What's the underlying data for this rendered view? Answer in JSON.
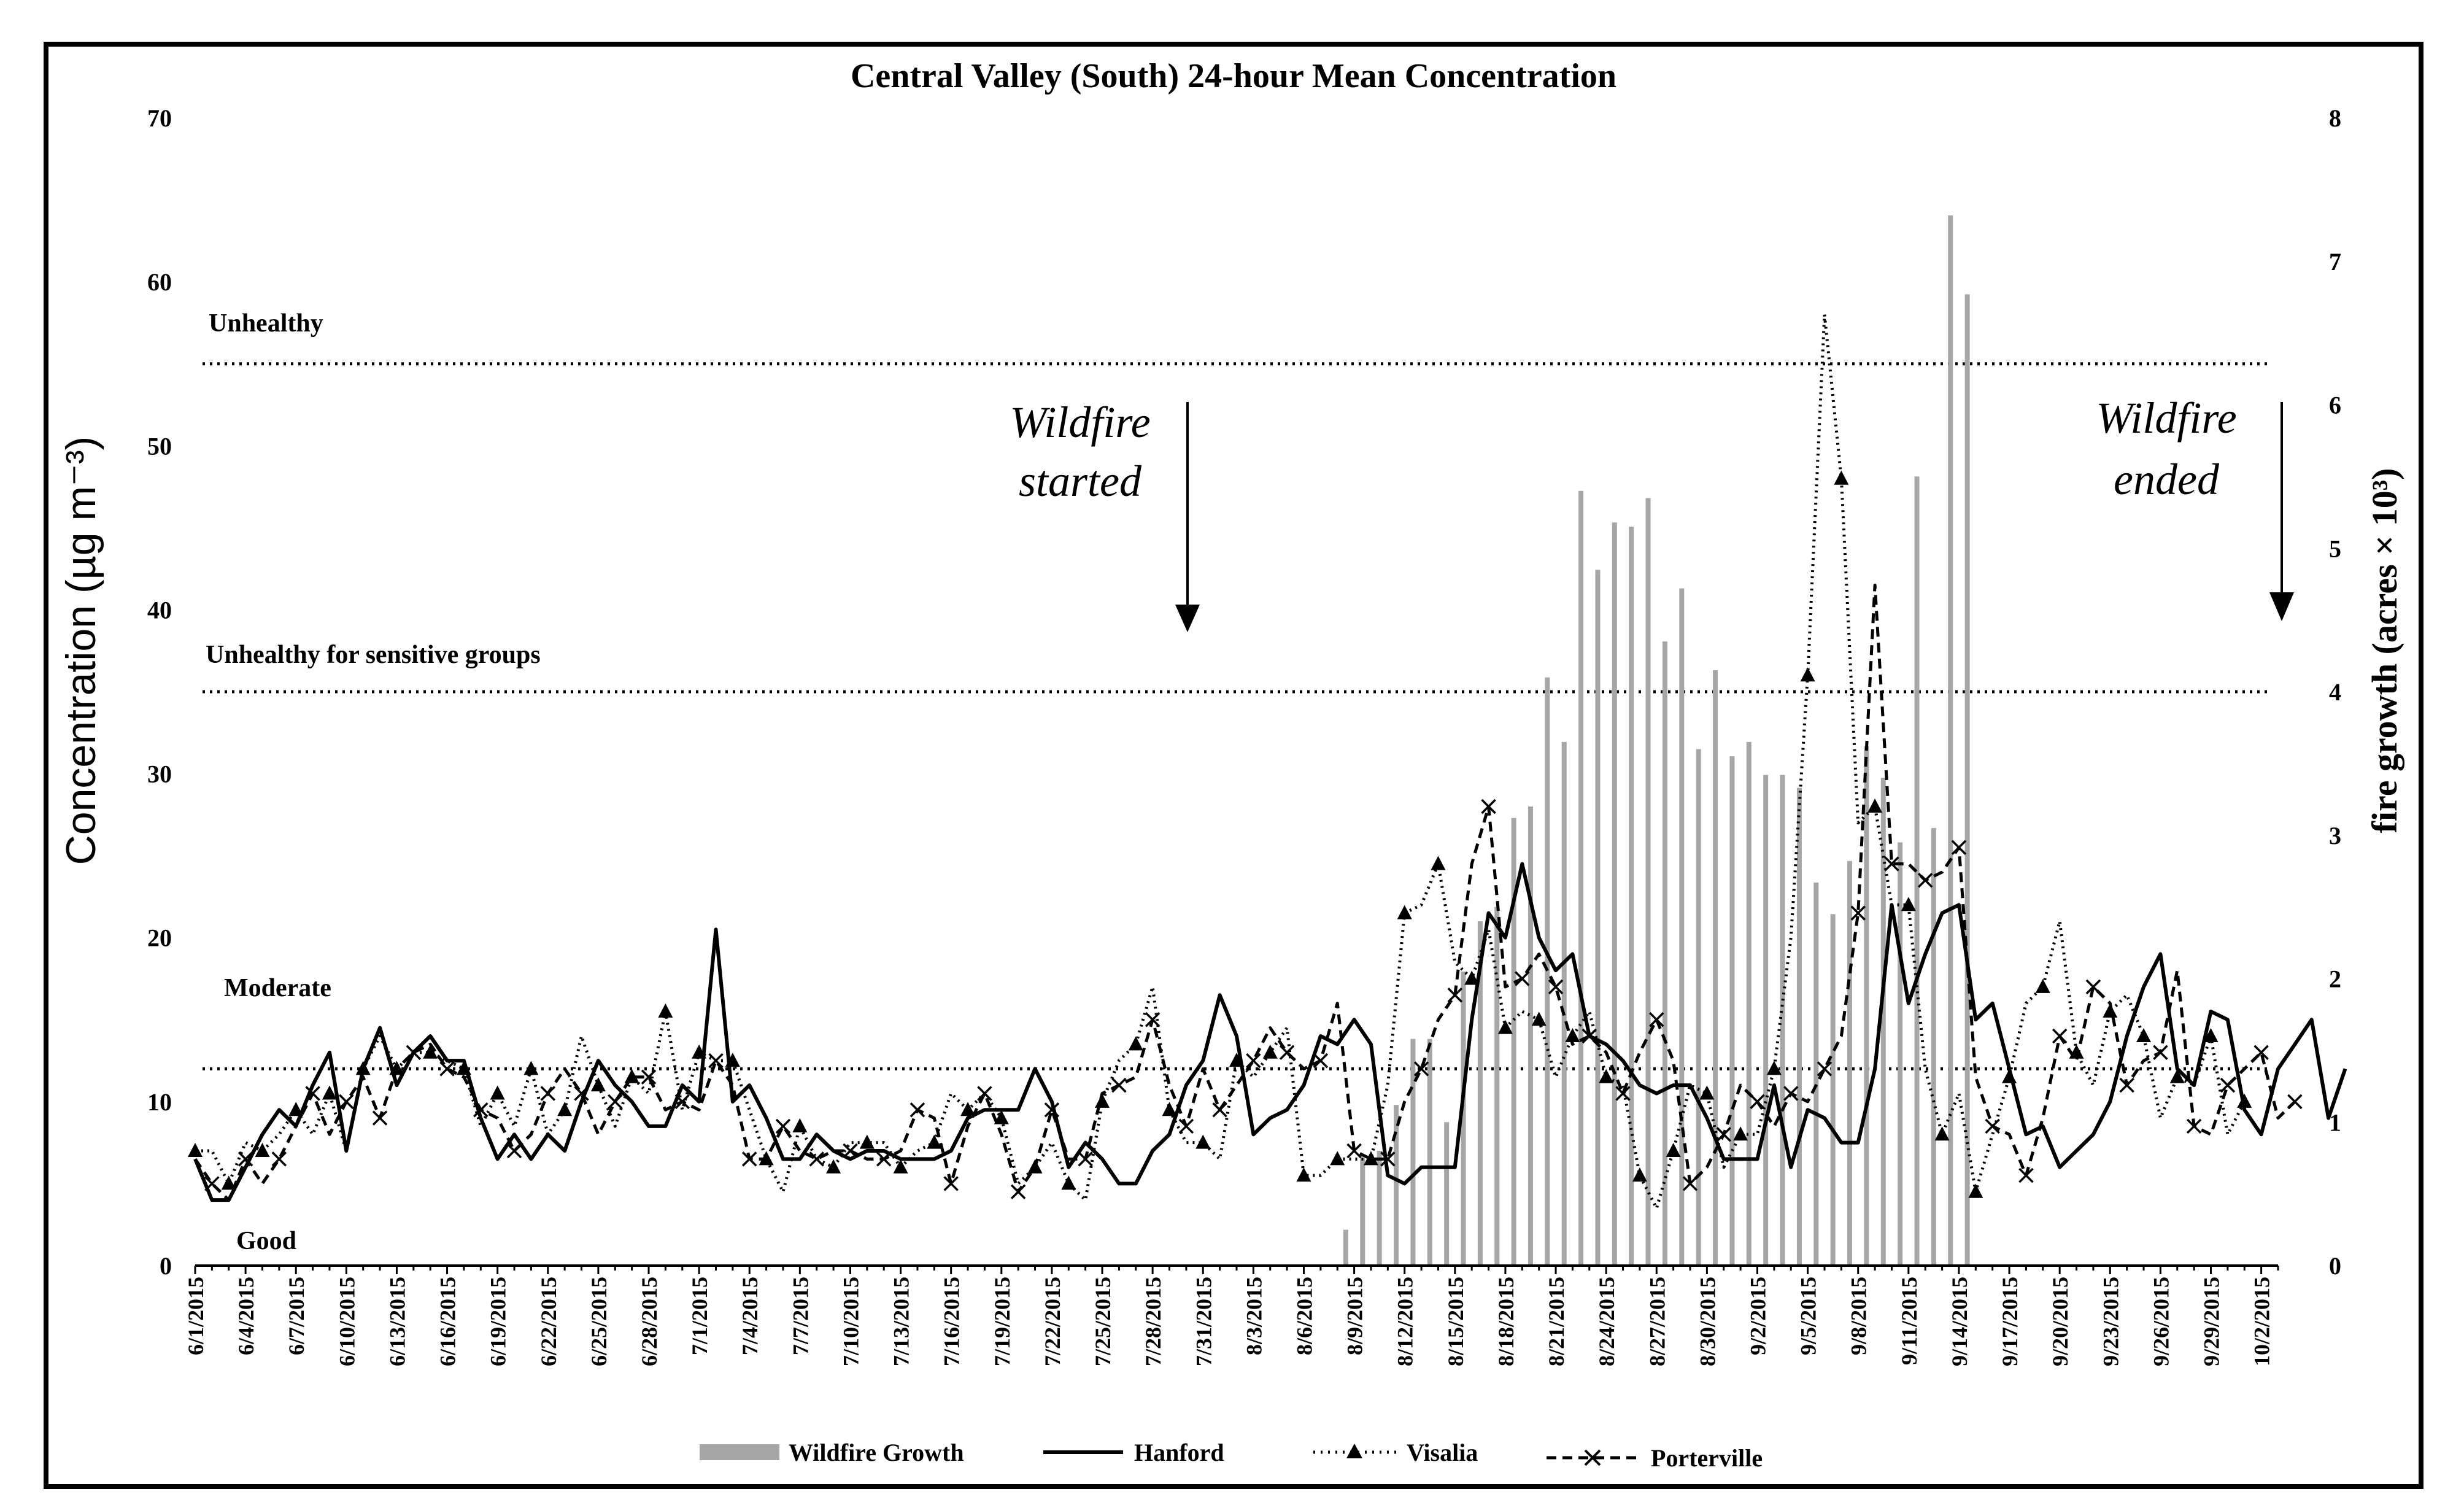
{
  "chart_data": {
    "type": "bar+line",
    "title": "Central Valley (South) 24-hour Mean Concentration",
    "ylabel_left": "Concentration (µg m⁻³)",
    "ylabel_right": "fire growth (acres × 10³)",
    "ylim_left": [
      0,
      70
    ],
    "ylim_right": [
      0,
      8
    ],
    "yticks_left": [
      0,
      10,
      20,
      30,
      40,
      50,
      60,
      70
    ],
    "yticks_right": [
      0,
      1,
      2,
      3,
      4,
      5,
      6,
      7,
      8
    ],
    "xticks": [
      "6/1/2015",
      "6/4/2015",
      "6/7/2015",
      "6/10/2015",
      "6/13/2015",
      "6/16/2015",
      "6/19/2015",
      "6/22/2015",
      "6/25/2015",
      "6/28/2015",
      "7/1/2015",
      "7/4/2015",
      "7/7/2015",
      "7/10/2015",
      "7/13/2015",
      "7/16/2015",
      "7/19/2015",
      "7/22/2015",
      "7/25/2015",
      "7/28/2015",
      "7/31/2015",
      "8/3/2015",
      "8/6/2015",
      "8/9/2015",
      "8/12/2015",
      "8/15/2015",
      "8/18/2015",
      "8/21/2015",
      "8/24/2015",
      "8/27/2015",
      "8/30/2015",
      "9/2/2015",
      "9/5/2015",
      "9/8/2015",
      "9/11/2015",
      "9/14/2015",
      "9/17/2015",
      "9/20/2015",
      "9/23/2015",
      "9/26/2015",
      "9/29/2015",
      "10/2/2015"
    ],
    "start_date": "6/1/2015",
    "reference_lines": [
      {
        "value": 55,
        "label": "Unhealthy"
      },
      {
        "value": 35,
        "label": "Unhealthy for sensitive groups"
      },
      {
        "value": 12,
        "label": ""
      }
    ],
    "band_labels": [
      {
        "value": 17,
        "label": "Moderate"
      },
      {
        "value": 1.5,
        "label": "Good"
      }
    ],
    "annotations": [
      {
        "label_line1": "Wildfire",
        "label_line2": "started",
        "day": 68
      },
      {
        "label_line1": "Wildfire",
        "label_line2": "ended",
        "day": 123
      }
    ],
    "legend": {
      "wildfire": "Wildfire Growth",
      "hanford": "Hanford",
      "visalia": "Visalia",
      "porterville": "Porterville"
    },
    "wildfire_growth": [
      [
        68,
        0.25
      ],
      [
        69,
        0.75
      ],
      [
        70,
        0.8
      ],
      [
        71,
        1.12
      ],
      [
        72,
        1.58
      ],
      [
        73,
        1.58
      ],
      [
        74,
        1.0
      ],
      [
        75,
        2.05
      ],
      [
        76,
        2.4
      ],
      [
        77,
        2.5
      ],
      [
        78,
        3.12
      ],
      [
        79,
        3.2
      ],
      [
        80,
        4.1
      ],
      [
        81,
        3.65
      ],
      [
        82,
        5.4
      ],
      [
        83,
        4.85
      ],
      [
        84,
        5.18
      ],
      [
        85,
        5.15
      ],
      [
        86,
        5.35
      ],
      [
        87,
        4.35
      ],
      [
        88,
        4.72
      ],
      [
        89,
        3.6
      ],
      [
        90,
        4.15
      ],
      [
        91,
        3.55
      ],
      [
        92,
        3.65
      ],
      [
        93,
        3.42
      ],
      [
        94,
        3.42
      ],
      [
        95,
        3.33
      ],
      [
        96,
        2.67
      ],
      [
        97,
        2.45
      ],
      [
        98,
        2.82
      ],
      [
        99,
        3.62
      ],
      [
        100,
        3.4
      ],
      [
        101,
        2.95
      ],
      [
        102,
        5.5
      ],
      [
        103,
        3.05
      ],
      [
        104,
        7.32
      ],
      [
        105,
        6.77
      ]
    ],
    "series": [
      {
        "name": "Hanford",
        "values": [
          6.5,
          4.0,
          4.0,
          6.0,
          8.0,
          9.5,
          8.5,
          11.0,
          13.0,
          7.0,
          12.0,
          14.5,
          11.0,
          13.0,
          14.0,
          12.5,
          12.5,
          9.0,
          6.5,
          8.0,
          6.5,
          8.0,
          7.0,
          10.0,
          12.5,
          11.0,
          10.0,
          8.5,
          8.5,
          11.0,
          10.0,
          20.5,
          10.0,
          11.0,
          9.0,
          6.5,
          6.5,
          8.0,
          7.0,
          6.5,
          7.0,
          7.0,
          6.5,
          6.5,
          6.5,
          7.0,
          9.0,
          9.5,
          9.5,
          9.5,
          12.0,
          10.0,
          6.0,
          7.5,
          6.5,
          5.0,
          5.0,
          7.0,
          8.0,
          11.0,
          12.5,
          16.5,
          14.0,
          8.0,
          9.0,
          9.5,
          11.0,
          14.0,
          13.5,
          15.0,
          13.5,
          5.5,
          5.0,
          6.0,
          6.0,
          6.0,
          15.0,
          21.5,
          20.0,
          24.5,
          20.0,
          18.0,
          19.0,
          14.0,
          13.5,
          12.5,
          11.0,
          10.5,
          11.0,
          11.0,
          9.0,
          6.5,
          6.5,
          6.5,
          11.0,
          6.0,
          9.5,
          9.0,
          7.5,
          7.5,
          12.0,
          22.0,
          16.0,
          19.0,
          21.5,
          22.0,
          15.0,
          16.0,
          12.0,
          8.0,
          8.5,
          6.0,
          7.0,
          8.0,
          10.0,
          14.0,
          17.0,
          19.0,
          12.0,
          11.0,
          15.5,
          15.0,
          9.5,
          8.0,
          12.0,
          13.5,
          15.0,
          9.0,
          12.0
        ]
      },
      {
        "name": "Visalia",
        "values": [
          7.0,
          7.0,
          5.0,
          7.5,
          7.0,
          8.0,
          9.5,
          8.0,
          10.5,
          7.0,
          12.0,
          14.0,
          12.0,
          13.0,
          13.0,
          12.5,
          12.0,
          8.5,
          10.5,
          8.5,
          12.0,
          8.0,
          9.5,
          14.0,
          11.0,
          8.5,
          11.5,
          10.5,
          15.5,
          9.5,
          13.0,
          12.5,
          12.5,
          9.5,
          6.5,
          4.5,
          8.5,
          6.5,
          6.0,
          7.5,
          7.5,
          7.5,
          6.0,
          7.0,
          7.5,
          10.5,
          9.5,
          10.5,
          9.0,
          5.0,
          6.0,
          7.5,
          5.0,
          4.0,
          10.0,
          12.5,
          13.5,
          17.0,
          9.5,
          7.5,
          7.5,
          6.5,
          12.5,
          11.5,
          13.0,
          14.5,
          5.5,
          5.5,
          6.5,
          6.5,
          6.5,
          11.0,
          21.5,
          22.0,
          24.5,
          18.5,
          17.5,
          20.5,
          14.5,
          15.5,
          15.0,
          11.5,
          14.0,
          15.5,
          11.5,
          11.0,
          5.5,
          3.5,
          7.0,
          11.0,
          10.5,
          6.0,
          8.0,
          8.0,
          12.0,
          20.0,
          36.0,
          58.0,
          48.0,
          27.0,
          28.0,
          22.0,
          22.0,
          12.0,
          8.0,
          10.5,
          4.5,
          8.0,
          11.5,
          16.0,
          17.0,
          21.0,
          13.0,
          11.0,
          15.5,
          16.5,
          14.0,
          9.0,
          11.5,
          11.0,
          14.0,
          8.0,
          10.0
        ]
      },
      {
        "name": "Porterville",
        "values": [
          6.5,
          5.0,
          4.0,
          6.5,
          5.0,
          6.5,
          8.5,
          10.5,
          8.0,
          10.0,
          11.5,
          9.0,
          12.0,
          13.0,
          13.5,
          12.0,
          11.5,
          9.5,
          9.0,
          7.0,
          8.0,
          10.5,
          12.0,
          10.5,
          8.0,
          10.0,
          11.5,
          11.5,
          9.5,
          10.0,
          9.5,
          12.5,
          11.0,
          6.5,
          6.5,
          8.5,
          7.0,
          6.5,
          7.0,
          7.0,
          6.5,
          6.5,
          7.0,
          9.5,
          9.0,
          5.0,
          8.5,
          10.5,
          8.0,
          4.5,
          6.0,
          9.5,
          6.5,
          6.5,
          10.5,
          11.0,
          11.5,
          15.0,
          11.0,
          8.5,
          12.0,
          9.5,
          11.0,
          12.5,
          14.5,
          13.0,
          12.0,
          12.5,
          16.0,
          7.0,
          6.5,
          6.5,
          10.0,
          12.0,
          15.0,
          16.5,
          24.5,
          28.0,
          17.0,
          17.5,
          19.0,
          17.0,
          13.5,
          14.0,
          13.0,
          10.5,
          13.0,
          15.0,
          12.5,
          5.0,
          6.0,
          8.0,
          11.0,
          10.0,
          8.5,
          10.5,
          10.0,
          12.0,
          14.0,
          21.5,
          41.5,
          24.5,
          24.5,
          23.5,
          24.0,
          25.5,
          11.5,
          8.5,
          8.0,
          5.5,
          9.0,
          14.0,
          12.5,
          17.0,
          16.0,
          11.0,
          12.5,
          13.0,
          18.0,
          8.5,
          8.0,
          11.0,
          12.0,
          13.0,
          9.0,
          10.0
        ]
      }
    ]
  }
}
